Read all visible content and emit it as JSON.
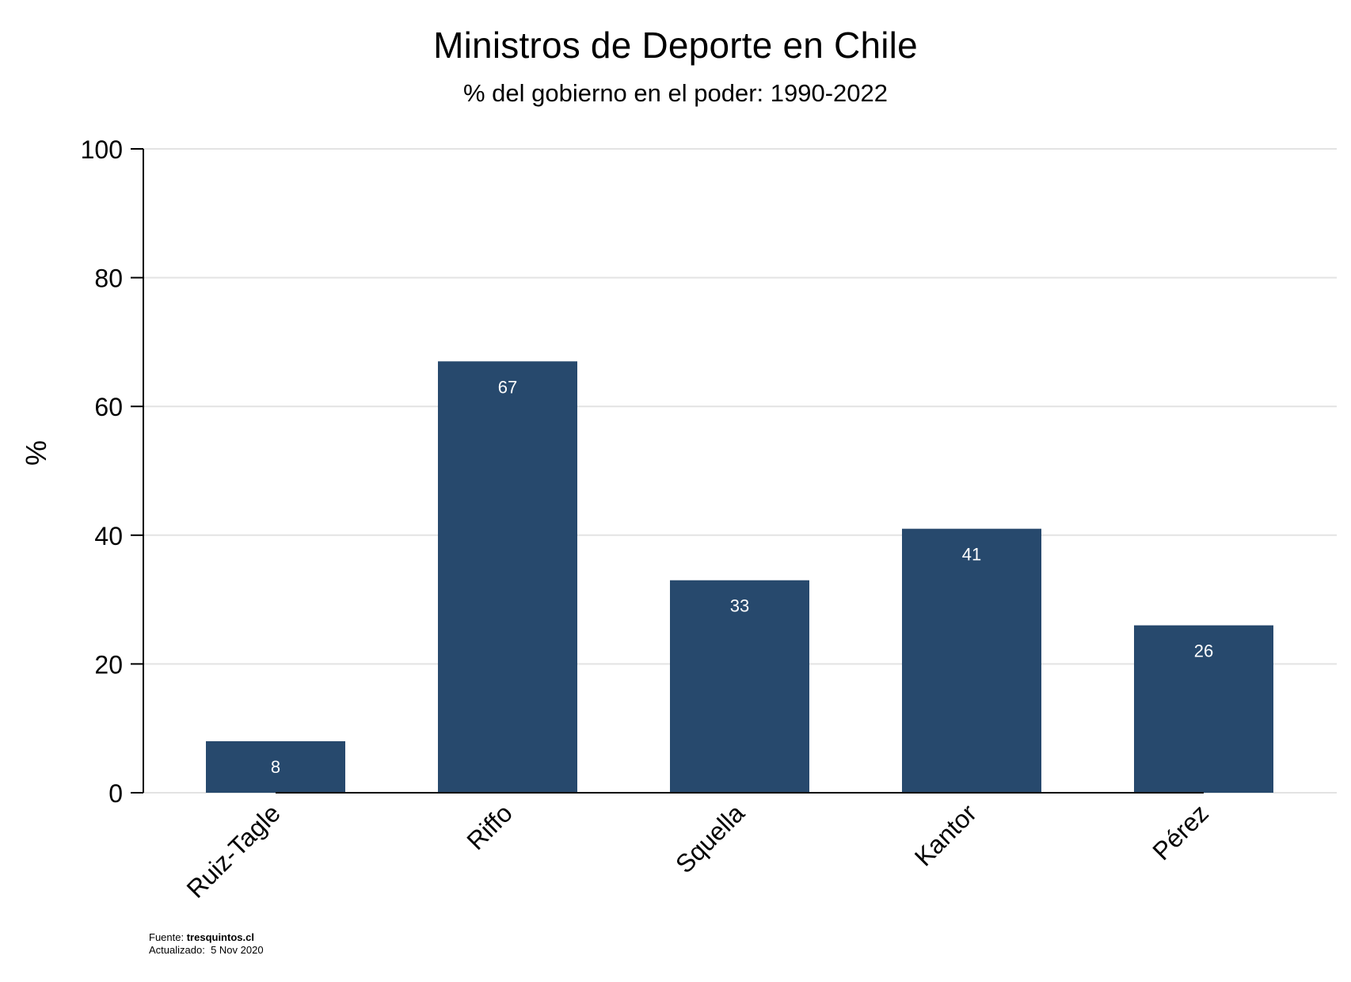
{
  "chart_data": {
    "type": "bar",
    "title": "Ministros de Deporte en Chile",
    "subtitle": "% del gobierno en el poder: 1990-2022",
    "xlabel": "",
    "ylabel": "%",
    "ylim": [
      0,
      100
    ],
    "yticks": [
      "0",
      "20",
      "40",
      "60",
      "80",
      "100"
    ],
    "categories": [
      "Ruiz-Tagle",
      "Riffo",
      "Squella",
      "Kantor",
      "Pérez"
    ],
    "values": [
      8,
      67,
      33,
      41,
      26
    ],
    "data_labels": [
      "8",
      "67",
      "33",
      "41",
      "26"
    ],
    "grid": true,
    "colors": {
      "bar": "#27496d",
      "label": "#ffffff",
      "grid": "#e3e3e3",
      "axis": "#000000"
    }
  },
  "footer": {
    "source_label": "Fuente:",
    "source_value": "tresquintos.cl",
    "updated_label": "Actualizado:",
    "updated_value": "5 Nov 2020"
  }
}
